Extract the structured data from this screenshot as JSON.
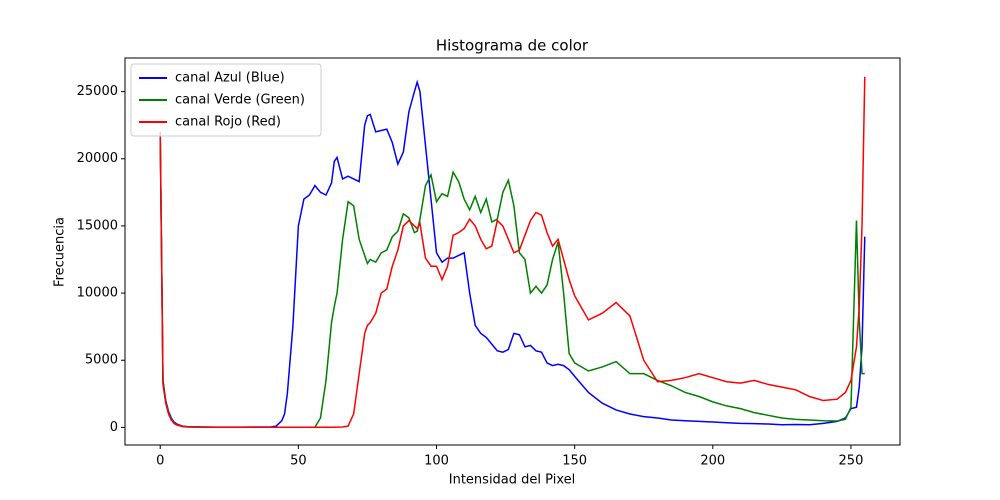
{
  "chart_data": {
    "type": "line",
    "title": "Histograma de color",
    "x_label": "Intensidad del Pixel",
    "y_label": "Frecuencia",
    "x": [
      0,
      1,
      2,
      3,
      4,
      5,
      6,
      8,
      10,
      15,
      20,
      25,
      30,
      35,
      40,
      42,
      44,
      45,
      46,
      48,
      50,
      52,
      54,
      56,
      58,
      60,
      62,
      63,
      64,
      66,
      68,
      70,
      72,
      74,
      75,
      76,
      78,
      80,
      82,
      84,
      86,
      88,
      90,
      92,
      93,
      94,
      96,
      98,
      100,
      102,
      104,
      106,
      108,
      110,
      112,
      114,
      116,
      118,
      120,
      122,
      124,
      126,
      128,
      130,
      132,
      134,
      136,
      138,
      140,
      142,
      144,
      146,
      148,
      150,
      155,
      160,
      165,
      170,
      175,
      180,
      185,
      190,
      195,
      200,
      205,
      210,
      215,
      220,
      225,
      230,
      235,
      240,
      245,
      248,
      250,
      252,
      253,
      254,
      255
    ],
    "series": [
      {
        "name": "canal Azul (Blue)",
        "color": "#0000ff",
        "values": [
          22000,
          3500,
          2000,
          1200,
          700,
          400,
          250,
          100,
          50,
          30,
          20,
          20,
          20,
          30,
          30,
          100,
          500,
          1000,
          2500,
          7500,
          15000,
          17000,
          17300,
          18000,
          17500,
          17300,
          18200,
          19800,
          20100,
          18500,
          18700,
          18500,
          18300,
          22500,
          23200,
          23300,
          22000,
          22100,
          22200,
          21200,
          19600,
          20500,
          23500,
          25000,
          25700,
          25000,
          21000,
          17000,
          13000,
          12300,
          12600,
          12600,
          12800,
          13000,
          10000,
          7600,
          7000,
          6700,
          6200,
          5700,
          5600,
          5800,
          7000,
          6900,
          6000,
          6100,
          5700,
          5600,
          4800,
          4600,
          4700,
          4600,
          4300,
          3800,
          2600,
          1800,
          1300,
          1000,
          800,
          700,
          550,
          500,
          450,
          400,
          350,
          300,
          280,
          250,
          200,
          220,
          200,
          300,
          450,
          700,
          1400,
          1500,
          3000,
          6000,
          14200
        ]
      },
      {
        "name": "canal Verde (Green)",
        "color": "#008000",
        "values": [
          21800,
          3300,
          1900,
          1100,
          600,
          350,
          200,
          80,
          40,
          20,
          10,
          10,
          10,
          10,
          10,
          10,
          10,
          10,
          10,
          10,
          10,
          10,
          10,
          20,
          700,
          3500,
          7800,
          9000,
          10000,
          14000,
          16800,
          16500,
          14000,
          12800,
          12200,
          12500,
          12300,
          13000,
          13200,
          14200,
          14600,
          15900,
          15600,
          14500,
          14600,
          15500,
          18000,
          18800,
          16800,
          17400,
          17200,
          19000,
          18300,
          17000,
          16200,
          17200,
          16000,
          17000,
          15300,
          15500,
          17500,
          18400,
          16500,
          13000,
          12500,
          10000,
          10500,
          10000,
          10600,
          12500,
          13800,
          10000,
          5500,
          4800,
          4200,
          4500,
          4900,
          4000,
          4000,
          3500,
          3100,
          2600,
          2300,
          1900,
          1600,
          1400,
          1100,
          900,
          700,
          600,
          550,
          500,
          480,
          600,
          1500,
          15400,
          8000,
          4000,
          4000
        ]
      },
      {
        "name": "canal Rojo (Red)",
        "color": "#ff0000",
        "values": [
          21600,
          3200,
          1800,
          1000,
          550,
          300,
          180,
          70,
          30,
          20,
          10,
          10,
          10,
          10,
          10,
          10,
          10,
          10,
          10,
          10,
          10,
          10,
          10,
          10,
          10,
          10,
          10,
          10,
          20,
          30,
          100,
          1000,
          4000,
          7000,
          7600,
          7800,
          8500,
          10000,
          10300,
          12000,
          13200,
          15000,
          15400,
          15000,
          14800,
          15200,
          12600,
          12000,
          12000,
          11000,
          12000,
          14300,
          14500,
          14800,
          15500,
          15000,
          14000,
          13300,
          13500,
          15400,
          15000,
          14000,
          13000,
          13200,
          14300,
          15400,
          16000,
          15800,
          14500,
          13500,
          14000,
          12500,
          11000,
          9800,
          8000,
          8500,
          9300,
          8300,
          5000,
          3400,
          3500,
          3700,
          4000,
          3700,
          3400,
          3300,
          3500,
          3200,
          3000,
          2800,
          2300,
          2000,
          2100,
          2600,
          3500,
          6000,
          9000,
          15000,
          26100
        ]
      }
    ],
    "xlim": [
      -12.75,
      267.75
    ],
    "ylim": [
      -1310,
      27500
    ],
    "xticks": [
      0,
      50,
      100,
      150,
      200,
      250
    ],
    "yticks": [
      0,
      5000,
      10000,
      15000,
      20000,
      25000
    ],
    "grid": false,
    "legend": "upper left"
  }
}
